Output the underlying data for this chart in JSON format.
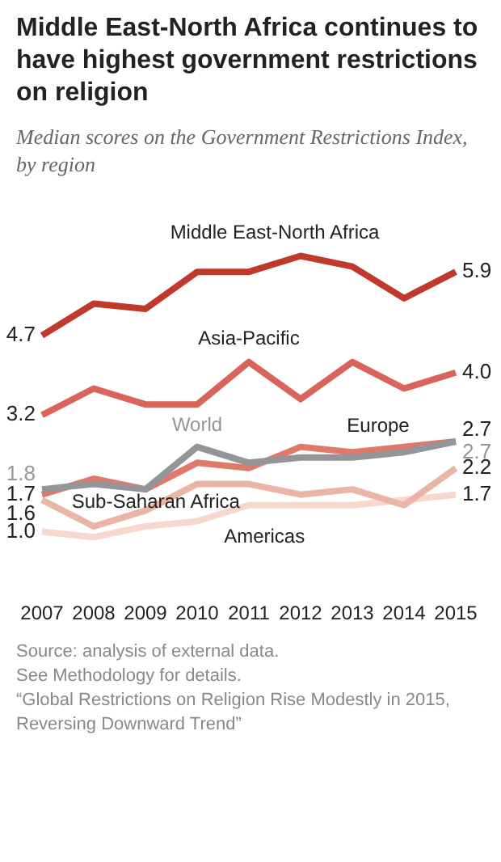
{
  "chart_data": {
    "type": "line",
    "title": "Middle East-North Africa continues to have highest government restrictions on religion",
    "subtitle": "Median scores on the Government Restrictions Index, by region",
    "categories": [
      "2007",
      "2008",
      "2009",
      "2010",
      "2011",
      "2012",
      "2013",
      "2014",
      "2015"
    ],
    "series": [
      {
        "name": "Middle East-North Africa",
        "color": "#bf3a2a",
        "values": [
          4.7,
          5.3,
          5.2,
          5.9,
          5.9,
          6.2,
          6.0,
          5.4,
          5.9
        ],
        "value_labels": [
          "4.7",
          null,
          null,
          null,
          null,
          null,
          null,
          null,
          "5.9"
        ]
      },
      {
        "name": "Asia-Pacific",
        "color": "#d9645a",
        "values": [
          3.2,
          3.7,
          3.4,
          3.4,
          4.2,
          3.5,
          4.2,
          3.7,
          4.0
        ],
        "value_labels": [
          "3.2",
          null,
          null,
          null,
          null,
          null,
          null,
          null,
          "4.0"
        ]
      },
      {
        "name": "World",
        "color": "#939598",
        "values": [
          1.8,
          1.9,
          1.8,
          2.6,
          2.3,
          2.4,
          2.4,
          2.5,
          2.7
        ],
        "value_labels": [
          "1.8",
          null,
          null,
          null,
          null,
          null,
          null,
          null,
          "2.7"
        ]
      },
      {
        "name": "Europe",
        "color": "#df7a6b",
        "values": [
          1.7,
          2.0,
          1.8,
          2.3,
          2.2,
          2.6,
          2.5,
          2.6,
          2.7
        ],
        "value_labels": [
          "1.7",
          null,
          null,
          null,
          null,
          null,
          null,
          null,
          "2.7"
        ]
      },
      {
        "name": "Sub-Saharan Africa",
        "color": "#ebb5a6",
        "values": [
          1.6,
          1.1,
          1.4,
          1.9,
          1.9,
          1.7,
          1.8,
          1.5,
          2.2
        ],
        "value_labels": [
          "1.6",
          null,
          null,
          null,
          null,
          null,
          null,
          null,
          "2.2"
        ]
      },
      {
        "name": "Americas",
        "color": "#f6d8cd",
        "values": [
          1.0,
          0.9,
          1.1,
          1.2,
          1.5,
          1.5,
          1.5,
          1.6,
          1.7
        ],
        "value_labels": [
          "1.0",
          null,
          null,
          null,
          null,
          null,
          null,
          null,
          "1.7"
        ]
      }
    ],
    "tick_labels": "x",
    "legend": false,
    "marker": "none",
    "line_style": "solid",
    "annotations": [
      "Source: analysis of external data.",
      "See Methodology for details.",
      "“Global Restrictions on Religion Rise Modestly in 2015, Reversing Downward Trend”"
    ]
  }
}
